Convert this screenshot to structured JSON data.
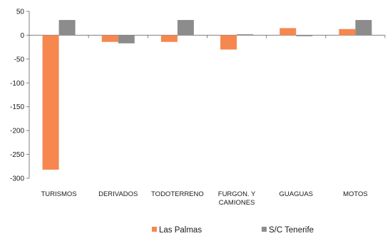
{
  "chart_data": {
    "type": "bar",
    "title": "",
    "xlabel": "",
    "ylabel": "",
    "ylim": [
      -300,
      50
    ],
    "yticks": [
      50,
      0,
      -50,
      -100,
      -150,
      -200,
      -250,
      -300
    ],
    "categories": [
      [
        "TURISMOS"
      ],
      [
        "DERIVADOS"
      ],
      [
        "TODOTERRENO"
      ],
      [
        "FURGON. Y",
        "CAMIONES"
      ],
      [
        "GUAGUAS"
      ],
      [
        "MOTOS"
      ]
    ],
    "series": [
      {
        "name": "Las Palmas",
        "color": "#f6874f",
        "values": [
          -282,
          -14,
          -14,
          -30,
          15,
          13
        ]
      },
      {
        "name": "S/C Tenerife",
        "color": "#8c8c8c",
        "values": [
          32,
          -17,
          32,
          2,
          -2,
          32
        ]
      }
    ],
    "legend": "bottom-center",
    "grid": false
  }
}
